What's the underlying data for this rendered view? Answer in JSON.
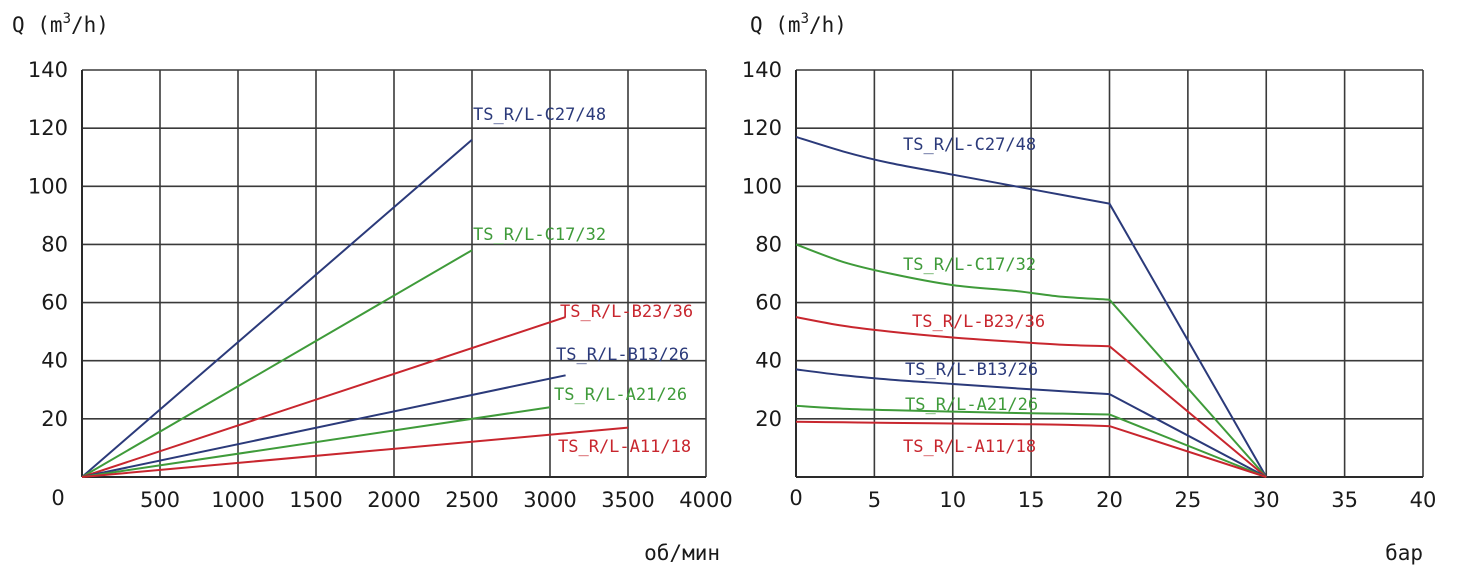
{
  "chart_data": [
    {
      "type": "line",
      "ylabel": "Q (m3/h)",
      "ylabel_parts": {
        "base": "Q (m",
        "sup": "3",
        "tail": "/h)"
      },
      "xlabel": "об/мин",
      "xlim": [
        0,
        4000
      ],
      "ylim": [
        0,
        140
      ],
      "origin_label": "0",
      "x_ticks": [
        "500",
        "1000",
        "1500",
        "2000",
        "2500",
        "3000",
        "3500",
        "4000"
      ],
      "y_ticks": [
        "20",
        "40",
        "60",
        "80",
        "100",
        "120",
        "140"
      ],
      "grid": true,
      "series": [
        {
          "name": "TS_R/L-C27/48",
          "color": "#2b3a7a",
          "x": [
            0,
            2500
          ],
          "y": [
            0,
            116
          ]
        },
        {
          "name": "TS_R/L-C17/32",
          "color": "#3f9b3a",
          "x": [
            0,
            2500
          ],
          "y": [
            0,
            78
          ]
        },
        {
          "name": "TS_R/L-B23/36",
          "color": "#c8262e",
          "x": [
            0,
            3100
          ],
          "y": [
            0,
            55
          ]
        },
        {
          "name": "TS_R/L-B13/26",
          "color": "#2b3a7a",
          "x": [
            0,
            3100
          ],
          "y": [
            0,
            35
          ]
        },
        {
          "name": "TS_R/L-A21/26",
          "color": "#3f9b3a",
          "x": [
            0,
            3000
          ],
          "y": [
            0,
            24
          ]
        },
        {
          "name": "TS_R/L-A11/18",
          "color": "#c8262e",
          "x": [
            0,
            3500
          ],
          "y": [
            0,
            17
          ]
        }
      ]
    },
    {
      "type": "line",
      "ylabel": "Q (m3/h)",
      "ylabel_parts": {
        "base": "Q (m",
        "sup": "3",
        "tail": "/h)"
      },
      "xlabel": "бар",
      "xlim": [
        0,
        40
      ],
      "ylim": [
        0,
        140
      ],
      "origin_label": "0",
      "x_ticks": [
        "5",
        "10",
        "15",
        "20",
        "25",
        "30",
        "35",
        "40"
      ],
      "y_ticks": [
        "20",
        "40",
        "60",
        "80",
        "100",
        "120",
        "140"
      ],
      "grid": true,
      "series": [
        {
          "name": "TS_R/L-C27/48",
          "color": "#2b3a7a",
          "x": [
            0,
            3,
            6,
            10,
            14,
            17,
            20,
            30
          ],
          "y": [
            117,
            112,
            108,
            104,
            100,
            97,
            94,
            0
          ]
        },
        {
          "name": "TS_R/L-C17/32",
          "color": "#3f9b3a",
          "x": [
            0,
            3,
            6,
            10,
            14,
            17,
            20,
            30
          ],
          "y": [
            80,
            74,
            70,
            66,
            64,
            62,
            61,
            0
          ]
        },
        {
          "name": "TS_R/L-B23/36",
          "color": "#c8262e",
          "x": [
            0,
            3,
            6,
            10,
            14,
            17,
            20,
            30
          ],
          "y": [
            55,
            52,
            50,
            48,
            46.5,
            45.5,
            45,
            0
          ]
        },
        {
          "name": "TS_R/L-B13/26",
          "color": "#2b3a7a",
          "x": [
            0,
            3,
            6,
            10,
            14,
            17,
            20,
            30
          ],
          "y": [
            37,
            35,
            33.5,
            32,
            30.5,
            29.5,
            28.5,
            0
          ]
        },
        {
          "name": "TS_R/L-A21/26",
          "color": "#3f9b3a",
          "x": [
            0,
            3,
            6,
            10,
            14,
            17,
            20,
            30
          ],
          "y": [
            24.5,
            23.5,
            23,
            22.5,
            22,
            21.8,
            21.5,
            0
          ]
        },
        {
          "name": "TS_R/L-A11/18",
          "color": "#c8262e",
          "x": [
            0,
            3,
            6,
            10,
            14,
            17,
            20,
            30
          ],
          "y": [
            19,
            18.8,
            18.6,
            18.4,
            18.2,
            18,
            17.5,
            0
          ]
        }
      ]
    }
  ]
}
